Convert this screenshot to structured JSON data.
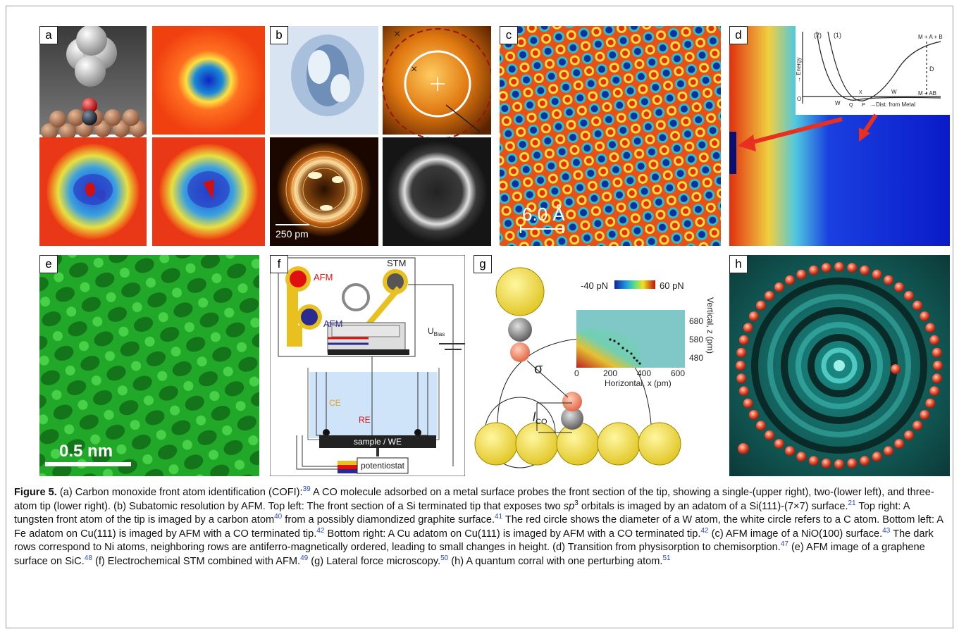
{
  "panels": {
    "a": {
      "label": "a"
    },
    "b": {
      "label": "b",
      "scale": "250 pm"
    },
    "c": {
      "label": "c",
      "scale": "6.0 Å"
    },
    "d": {
      "label": "d",
      "inset": {
        "curve1": "(2)",
        "curve2": "(1)",
        "ylabel": "→ Energy",
        "xlabel": "→Dist. from Metal",
        "top_right": "M + A + B",
        "bottom_right": "M + AB",
        "D": "D",
        "W": "W",
        "W2": "W",
        "Q": "Q",
        "P": "P",
        "X": "X",
        "O": "O"
      }
    },
    "e": {
      "label": "e",
      "scale": "0.5 nm"
    },
    "f": {
      "label": "f",
      "afm_top": "AFM",
      "afm_bottom": "AFM",
      "stm": "STM",
      "ubias": "U",
      "ubias_sub": "Bias",
      "ce": "CE",
      "re": "RE",
      "sample": "sample / WE",
      "potentiostat": "potentiostat"
    },
    "g": {
      "label": "g",
      "cb_min": "-40 pN",
      "cb_max": "60 pN",
      "sigma": "σ",
      "lco": "l",
      "lco_sub": "CO",
      "yticks": [
        "680",
        "580",
        "480"
      ],
      "xticks": [
        "0",
        "200",
        "400",
        "600"
      ],
      "xlabel": "Horizontal, x (pm)",
      "ylabel": "Vertical, z (pm)"
    },
    "h": {
      "label": "h"
    }
  },
  "caption": {
    "figure_label": "Figure 5.",
    "t1": " (a) Carbon monoxide front atom identification (COFI):",
    "r39": "39",
    "t2": " A CO molecule adsorbed on a metal surface probes the front section of the tip, showing a single-(upper right), two-(lower left), and three-atom tip (lower right). (b) Subatomic resolution by AFM. Top left: The front section of a Si terminated tip that exposes two ",
    "sp": "sp",
    "sp_sup": "3",
    "t3": " orbitals is imaged by an adatom of a Si(111)-(7×7) surface.",
    "r21": "21",
    "t4": " Top right: A tungsten front atom of the tip is imaged by a carbon atom",
    "r40": "40",
    "t5": " from a possibly diamondized graphite surface.",
    "r41": "41",
    "t6": " The red circle shows the diameter of a W atom, the white circle refers to a C atom. Bottom left: A Fe adatom on Cu(111) is imaged by AFM with a CO terminated tip.",
    "r42a": "42",
    "t7": " Bottom right: A Cu adatom on Cu(111) is imaged by AFM with a CO terminated tip.",
    "r42b": "42",
    "t8": " (c) AFM image of a NiO(100) surface.",
    "r43": "43",
    "t9": " The dark rows correspond to Ni atoms, neighboring rows are antiferro-magnetically ordered, leading to small changes in height. (d) Transition from physisorption to chemisorption.",
    "r47": "47",
    "t10": " (e) AFM image of a graphene surface on SiC.",
    "r48": "48",
    "t11": " (f) Electrochemical STM combined with AFM.",
    "r49": "49",
    "t12": " (g) Lateral force microscopy.",
    "r50": "50",
    "t13": " (h) A quantum corral with one perturbing atom.",
    "r51": "51"
  }
}
